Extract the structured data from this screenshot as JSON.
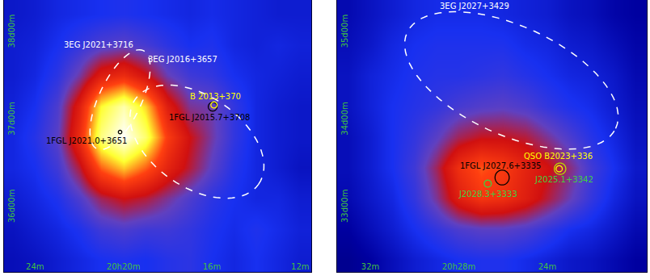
{
  "chart_data": [
    {
      "type": "heatmap",
      "x": [
        25,
        24,
        23,
        22,
        21,
        20,
        19,
        18,
        17,
        16,
        15,
        14,
        13,
        12
      ],
      "y": [
        35.4,
        35.75,
        36.1,
        36.45,
        36.8,
        37.15,
        37.5,
        37.85,
        38.2
      ],
      "z": [
        [
          1.5,
          1.6,
          1.8,
          2.0,
          2.2,
          2.3,
          2.2,
          2.4,
          2.5,
          2.2,
          2.0,
          2.2,
          2.0,
          1.8
        ],
        [
          1.6,
          1.8,
          2.0,
          2.3,
          2.8,
          3.0,
          2.8,
          2.8,
          2.6,
          2.3,
          2.1,
          2.3,
          2.1,
          1.9
        ],
        [
          1.8,
          2.0,
          2.3,
          3.0,
          4.0,
          4.5,
          4.2,
          3.6,
          3.0,
          2.5,
          2.2,
          2.0,
          2.0,
          1.8
        ],
        [
          2.0,
          2.2,
          2.8,
          4.2,
          6.5,
          7.5,
          6.5,
          5.2,
          4.2,
          3.2,
          2.4,
          2.0,
          1.8,
          1.6
        ],
        [
          2.0,
          2.4,
          3.2,
          5.5,
          8.8,
          10,
          8.6,
          6.0,
          4.5,
          3.5,
          2.6,
          2.0,
          1.8,
          1.7
        ],
        [
          1.9,
          2.2,
          3.0,
          5.0,
          8.0,
          9.2,
          7.6,
          5.0,
          3.6,
          3.4,
          2.6,
          2.0,
          1.8,
          1.7
        ],
        [
          1.8,
          2.0,
          2.5,
          3.5,
          5.0,
          5.5,
          4.6,
          3.4,
          2.8,
          2.6,
          2.2,
          2.0,
          1.9,
          1.8
        ],
        [
          1.8,
          1.9,
          2.2,
          2.6,
          3.0,
          3.2,
          2.9,
          2.5,
          2.2,
          2.3,
          2.0,
          1.9,
          2.0,
          1.9
        ],
        [
          1.7,
          1.8,
          2.0,
          2.1,
          2.2,
          2.3,
          2.2,
          2.1,
          2.0,
          2.1,
          2.0,
          1.9,
          1.8,
          1.8
        ]
      ],
      "zlim": [
        0,
        10
      ],
      "xlim": [
        25.4,
        11.5
      ],
      "ylim": [
        35.26,
        38.37
      ],
      "xticks": [
        {
          "value": 24,
          "label": "24m"
        },
        {
          "value": 20,
          "label": "20h20m"
        },
        {
          "value": 16,
          "label": "16m"
        },
        {
          "value": 12,
          "label": "12m"
        }
      ],
      "yticks": [
        {
          "value": 36,
          "label": "36d00m"
        },
        {
          "value": 37,
          "label": "37d00m"
        },
        {
          "value": 38,
          "label": "38d00m"
        }
      ],
      "grid": true,
      "regions": [
        {
          "name": "3EG J2021+3716",
          "center": [
            20.15,
            37.23
          ],
          "semi_axes_deg": [
            0.62,
            0.24
          ],
          "angle": 65,
          "color": "#ffffff",
          "line_style": "dashed"
        },
        {
          "name": "3EG J2016+3657",
          "center": [
            16.67,
            36.75
          ],
          "semi_axes_deg": [
            0.85,
            0.52
          ],
          "angle": -35,
          "color": "#ffffff",
          "line_style": "dashed"
        },
        {
          "name": "1FGL J2021.0+3651",
          "center": [
            20.15,
            36.86
          ],
          "semi_axes_deg": [
            0.02,
            0.02
          ],
          "angle": 0,
          "color": "#000000",
          "line_style": "solid"
        },
        {
          "name": "1FGL J2015.7+3708",
          "center": [
            15.96,
            37.15
          ],
          "semi_axes_deg": [
            0.05,
            0.05
          ],
          "angle": 0,
          "color": "#000000",
          "line_style": "solid"
        },
        {
          "name": "B 2013+370",
          "center": [
            15.9,
            37.17
          ],
          "semi_axes_deg": [
            0.035,
            0.035
          ],
          "angle": 0,
          "color": "#ffff00",
          "line_style": "solid"
        }
      ],
      "annotations": [
        {
          "text": "3EG J2021+3716",
          "x": 21.11,
          "y": 37.86,
          "color": "#ffffff"
        },
        {
          "text": "3EG J2016+3657",
          "x": 17.33,
          "y": 37.69,
          "color": "#ffffff"
        },
        {
          "text": "B 2013+370",
          "x": 15.85,
          "y": 37.27,
          "color": "#ffff00"
        },
        {
          "text": "1FGL J2015.7+3708",
          "x": 16.1,
          "y": 37.03,
          "color": "#000000"
        },
        {
          "text": "1FGL J2021.0+3651",
          "x": 21.67,
          "y": 36.76,
          "color": "#000000"
        }
      ]
    },
    {
      "type": "heatmap",
      "x": [
        33,
        32,
        31,
        30,
        29,
        28,
        27,
        26,
        25,
        24,
        23,
        22,
        21,
        20
      ],
      "y": [
        32.4,
        32.75,
        33.1,
        33.45,
        33.8,
        34.15,
        34.5,
        34.85,
        35.2
      ],
      "z": [
        [
          1.0,
          1.2,
          1.5,
          1.8,
          2.0,
          2.2,
          2.3,
          2.3,
          2.1,
          1.9,
          1.7,
          1.6,
          1.4,
          1.2
        ],
        [
          1.2,
          1.5,
          1.8,
          2.2,
          2.6,
          3.0,
          3.2,
          3.2,
          3.0,
          2.6,
          2.2,
          2.0,
          1.7,
          1.4
        ],
        [
          1.4,
          1.7,
          2.0,
          2.6,
          3.6,
          5.0,
          5.8,
          5.6,
          5.0,
          4.2,
          3.4,
          2.6,
          2.0,
          1.6
        ],
        [
          1.5,
          1.8,
          2.2,
          2.8,
          4.0,
          5.6,
          6.4,
          6.0,
          5.2,
          4.6,
          3.8,
          2.8,
          2.2,
          1.7
        ],
        [
          1.5,
          1.8,
          2.2,
          2.6,
          3.2,
          4.0,
          4.4,
          4.4,
          4.2,
          3.6,
          3.0,
          2.4,
          2.0,
          1.6
        ],
        [
          1.6,
          1.9,
          2.2,
          2.4,
          2.6,
          2.9,
          3.1,
          3.2,
          3.0,
          2.6,
          2.3,
          2.1,
          1.8,
          1.5
        ],
        [
          1.6,
          1.9,
          2.1,
          2.3,
          2.4,
          2.4,
          2.5,
          2.6,
          2.4,
          2.2,
          2.0,
          1.9,
          1.7,
          1.4
        ],
        [
          1.5,
          1.7,
          2.0,
          2.2,
          2.3,
          2.3,
          2.3,
          2.3,
          2.1,
          2.0,
          1.8,
          1.7,
          1.5,
          1.3
        ],
        [
          1.4,
          1.6,
          1.8,
          2.0,
          2.1,
          2.1,
          2.1,
          2.0,
          1.9,
          1.8,
          1.6,
          1.5,
          1.3,
          1.2
        ]
      ],
      "zlim": [
        0,
        10
      ],
      "xlim": [
        33.5,
        19.5
      ],
      "ylim": [
        32.26,
        35.37
      ],
      "xticks": [
        {
          "value": 32,
          "label": "32m"
        },
        {
          "value": 28,
          "label": "20h28m"
        },
        {
          "value": 24,
          "label": "24m"
        }
      ],
      "yticks": [
        {
          "value": 33,
          "label": "33d00m"
        },
        {
          "value": 34,
          "label": "34d00m"
        },
        {
          "value": 35,
          "label": "35d00m"
        }
      ],
      "grid": true,
      "regions": [
        {
          "name": "3EG J2027+3429",
          "center": [
            25.62,
            34.45
          ],
          "semi_axes_deg": [
            1.3,
            0.62
          ],
          "angle": -25,
          "color": "#ffffff",
          "line_style": "dashed"
        },
        {
          "name": "1FGL J2027.6+3335",
          "center": [
            26.04,
            33.34
          ],
          "semi_axes_deg": [
            0.08,
            0.085
          ],
          "angle": 0,
          "color": "#000000",
          "line_style": "solid"
        },
        {
          "name": "QSO B2023+336",
          "center": [
            23.46,
            33.44
          ],
          "semi_axes_deg": [
            0.035,
            0.035
          ],
          "angle": 0,
          "color": "#ffff00",
          "line_style": "solid"
        },
        {
          "name": "J2025.1+3342",
          "center": [
            23.42,
            33.44
          ],
          "semi_axes_deg": [
            0.065,
            0.065
          ],
          "angle": 0,
          "color": "#b8e000",
          "line_style": "solid"
        },
        {
          "name": "J2028.3+3333",
          "center": [
            26.69,
            33.27
          ],
          "semi_axes_deg": [
            0.04,
            0.04
          ],
          "angle": 0,
          "color": "#40d040",
          "line_style": "solid"
        }
      ],
      "annotations": [
        {
          "text": "3EG J2027+3429",
          "x": 27.27,
          "y": 35.3,
          "color": "#ffffff"
        },
        {
          "text": "1FGL J2027.6+3335",
          "x": 26.12,
          "y": 33.47,
          "color": "#000000"
        },
        {
          "text": "QSO B2023+336",
          "x": 23.5,
          "y": 33.58,
          "color": "#ffff00"
        },
        {
          "text": "J2025.1+3342",
          "x": 23.23,
          "y": 33.32,
          "color": "#40d040"
        },
        {
          "text": "J2028.3+3333",
          "x": 26.69,
          "y": 33.15,
          "color": "#40d040"
        }
      ]
    }
  ]
}
